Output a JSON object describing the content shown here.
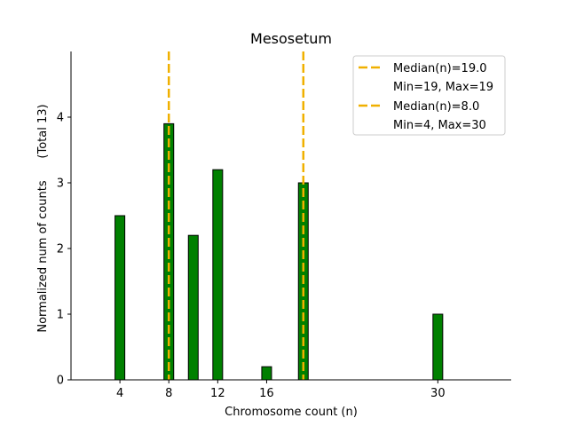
{
  "chart_data": {
    "type": "bar",
    "title": "Mesosetum",
    "xlabel": "Chromosome count (n)",
    "ylabel": "Normalized num of counts",
    "ylabel_note": "(Total 13)",
    "xlim": [
      0,
      36
    ],
    "ylim": [
      0,
      5
    ],
    "xticks": [
      4,
      8,
      12,
      16,
      30
    ],
    "yticks": [
      0,
      1,
      2,
      3,
      4
    ],
    "bar_width": 0.8,
    "bar_color": "#008000",
    "bar_edge_color": "#000000",
    "series": [
      {
        "name": "counts",
        "x": [
          4,
          8,
          10,
          12,
          16,
          19,
          30
        ],
        "values": [
          2.5,
          3.9,
          2.2,
          3.2,
          0.2,
          3.0,
          1.0
        ]
      }
    ],
    "median_lines": [
      {
        "x": 19,
        "label": "Median(n)=19.0",
        "sublabel": "Min=19, Max=19",
        "color": "#f0b000"
      },
      {
        "x": 8,
        "label": "Median(n)=8.0",
        "sublabel": "Min=4, Max=30",
        "color": "#f0b000"
      }
    ],
    "legend_position": "top-right"
  }
}
